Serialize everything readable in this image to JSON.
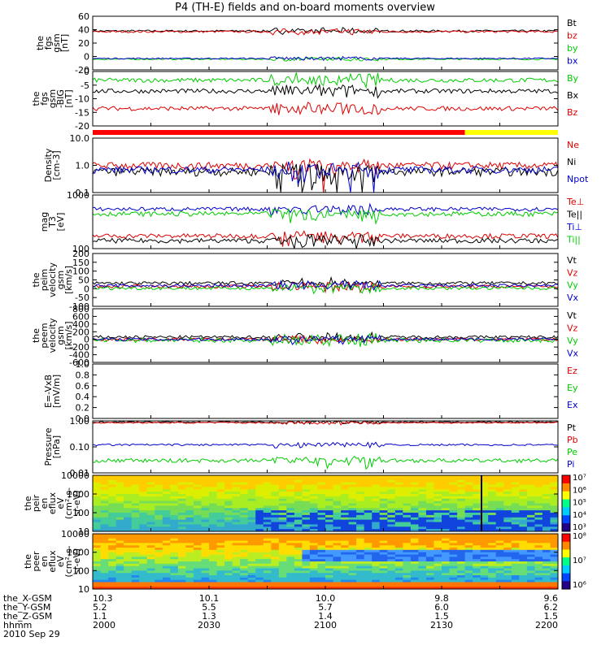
{
  "title": "P4 (TH-E) fields and on-board moments overview",
  "chart_data": [
    {
      "id": "fgs_b",
      "type": "line",
      "ylabel": [
        "the",
        "fgs",
        "gsm",
        "[nT]"
      ],
      "yticks": [
        "60",
        "40",
        "20",
        "0",
        "-20"
      ],
      "ylim": [
        -20,
        60
      ],
      "series": [
        {
          "name": "Bt",
          "color": "#000000",
          "base": 38,
          "amp": 1.5
        },
        {
          "name": "bz",
          "color": "#dd0000",
          "base": 37,
          "amp": 1.5
        },
        {
          "name": "by",
          "color": "#00cc00",
          "base": -4,
          "amp": 1
        },
        {
          "name": "bx",
          "color": "#0000cc",
          "base": -3,
          "amp": 1
        }
      ]
    },
    {
      "id": "fgs_b_zoom",
      "type": "line",
      "ylabel": [
        "the",
        "fgs",
        "gsm",
        "-BIG",
        "[nT]"
      ],
      "yticks": [
        "0",
        "-5",
        "-10",
        "-15",
        "-20"
      ],
      "ylim": [
        -22,
        3
      ],
      "series": [
        {
          "name": "By",
          "color": "#00cc00",
          "base": -1,
          "amp": 1
        },
        {
          "name": "Bx",
          "color": "#000000",
          "base": -6,
          "amp": 1
        },
        {
          "name": "Bz",
          "color": "#dd0000",
          "base": -14,
          "amp": 1
        }
      ]
    },
    {
      "id": "density",
      "type": "line",
      "log": true,
      "ylabel": [
        "Density",
        "[cm-3]"
      ],
      "yticks": [
        "10.0",
        "1.0",
        "0.1"
      ],
      "ylim": [
        0.1,
        10
      ],
      "series": [
        {
          "name": "Ne",
          "color": "#dd0000",
          "base": 1.0,
          "amp": 0.3
        },
        {
          "name": "Ni",
          "color": "#000000",
          "base": 0.6,
          "amp": 0.2
        },
        {
          "name": "Npot",
          "color": "#0000cc",
          "base": 0.7,
          "amp": 0.2
        }
      ]
    },
    {
      "id": "temperature",
      "type": "line",
      "log": true,
      "ylabel": [
        "mag",
        "T3",
        "[eV]"
      ],
      "yticks": [
        "1000",
        "100"
      ],
      "ylim": [
        100,
        10000
      ],
      "series": [
        {
          "name": "Te⊥",
          "color": "#dd0000",
          "base": 300,
          "amp": 60
        },
        {
          "name": "Te||",
          "color": "#000000",
          "base": 200,
          "amp": 40
        },
        {
          "name": "Ti⊥",
          "color": "#0000cc",
          "base": 3000,
          "amp": 500
        },
        {
          "name": "Ti||",
          "color": "#00cc00",
          "base": 2000,
          "amp": 400
        }
      ]
    },
    {
      "id": "velocity_e",
      "type": "line",
      "ylabel": [
        "the",
        "peim",
        "velocity",
        "gsm",
        "[km/s]"
      ],
      "yticks": [
        "200",
        "150",
        "100",
        "50",
        "0",
        "-50",
        "-100"
      ],
      "ylim": [
        -120,
        200
      ],
      "series": [
        {
          "name": "Vt",
          "color": "#000000",
          "base": 20,
          "amp": 10
        },
        {
          "name": "Vz",
          "color": "#dd0000",
          "base": 0,
          "amp": 10
        },
        {
          "name": "Vy",
          "color": "#00cc00",
          "base": -10,
          "amp": 10
        },
        {
          "name": "Vx",
          "color": "#0000cc",
          "base": 5,
          "amp": 10
        }
      ]
    },
    {
      "id": "velocity_i",
      "type": "line",
      "ylabel": [
        "the",
        "peem",
        "velocity",
        "gsm",
        "[km/s]"
      ],
      "yticks": [
        "800",
        "600",
        "400",
        "200",
        "0",
        "-200",
        "-400",
        "-600"
      ],
      "ylim": [
        -600,
        800
      ],
      "series": [
        {
          "name": "Vt",
          "color": "#000000",
          "base": 60,
          "amp": 40
        },
        {
          "name": "Vz",
          "color": "#dd0000",
          "base": 0,
          "amp": 40
        },
        {
          "name": "Vy",
          "color": "#00cc00",
          "base": -20,
          "amp": 60
        },
        {
          "name": "Vx",
          "color": "#0000cc",
          "base": 0,
          "amp": 40
        }
      ]
    },
    {
      "id": "efield",
      "type": "line",
      "ylabel": [
        "E=-VxB",
        "[mV/m]"
      ],
      "yticks": [
        "1.0",
        "0.8",
        "0.6",
        "0.4",
        "0.2",
        "0.0"
      ],
      "ylim": [
        0,
        1
      ],
      "series": [
        {
          "name": "Ez",
          "color": "#dd0000"
        },
        {
          "name": "Ey",
          "color": "#00cc00"
        },
        {
          "name": "Ex",
          "color": "#0000cc"
        }
      ]
    },
    {
      "id": "pressure",
      "type": "line",
      "log": true,
      "ylabel": [
        "Pressure",
        "[nPa]"
      ],
      "yticks": [
        "1.00",
        "0.10",
        "0.01"
      ],
      "ylim": [
        0.01,
        1
      ],
      "series": [
        {
          "name": "Pt",
          "color": "#000000",
          "base": 0.9,
          "amp": 0.05
        },
        {
          "name": "Pb",
          "color": "#dd0000",
          "base": 0.85,
          "amp": 0.05
        },
        {
          "name": "Pe",
          "color": "#00cc00",
          "base": 0.03,
          "amp": 0.005
        },
        {
          "name": "Pi",
          "color": "#0000cc",
          "base": 0.12,
          "amp": 0.01
        }
      ]
    },
    {
      "id": "ion_spectrogram",
      "type": "heatmap",
      "ylabel": [
        "the",
        "peir",
        "en",
        "eflux",
        "eV",
        "(cm²-s-",
        "sr-eV)"
      ],
      "yticks": [
        "10000",
        "1000",
        "100",
        "10"
      ],
      "colorbar": [
        "10⁷",
        "10⁶",
        "10⁵",
        "10⁴",
        "10³"
      ]
    },
    {
      "id": "electron_spectrogram",
      "type": "heatmap",
      "ylabel": [
        "the",
        "peer",
        "en",
        "eflux",
        "eV",
        "(cm²-s-",
        "sr-eV)"
      ],
      "yticks": [
        "10000",
        "1000",
        "100",
        "10"
      ],
      "colorbar": [
        "10⁸",
        "10⁷",
        "10⁶"
      ]
    }
  ],
  "xaxis": {
    "row_labels": [
      "the_X-GSM",
      "the_Y-GSM",
      "the_Z-GSM",
      "hhmm",
      "2010 Sep 29"
    ],
    "columns": [
      {
        "x": "10.3",
        "y": "5.2",
        "z": "1.1",
        "hhmm": "2000"
      },
      {
        "x": "10.1",
        "y": "5.5",
        "z": "1.3",
        "hhmm": "2030"
      },
      {
        "x": "10.0",
        "y": "5.7",
        "z": "1.4",
        "hhmm": "2100"
      },
      {
        "x": "9.8",
        "y": "6.0",
        "z": "1.5",
        "hhmm": "2130"
      },
      {
        "x": "9.6",
        "y": "6.2",
        "z": "1.5",
        "hhmm": "2200"
      }
    ]
  },
  "mode_bar": {
    "segments": [
      {
        "color": "#ff0000",
        "fraction": 0.8
      },
      {
        "color": "#ffff00",
        "fraction": 0.2
      }
    ]
  },
  "colors": {
    "background": "#ffffff",
    "axis": "#000000"
  }
}
